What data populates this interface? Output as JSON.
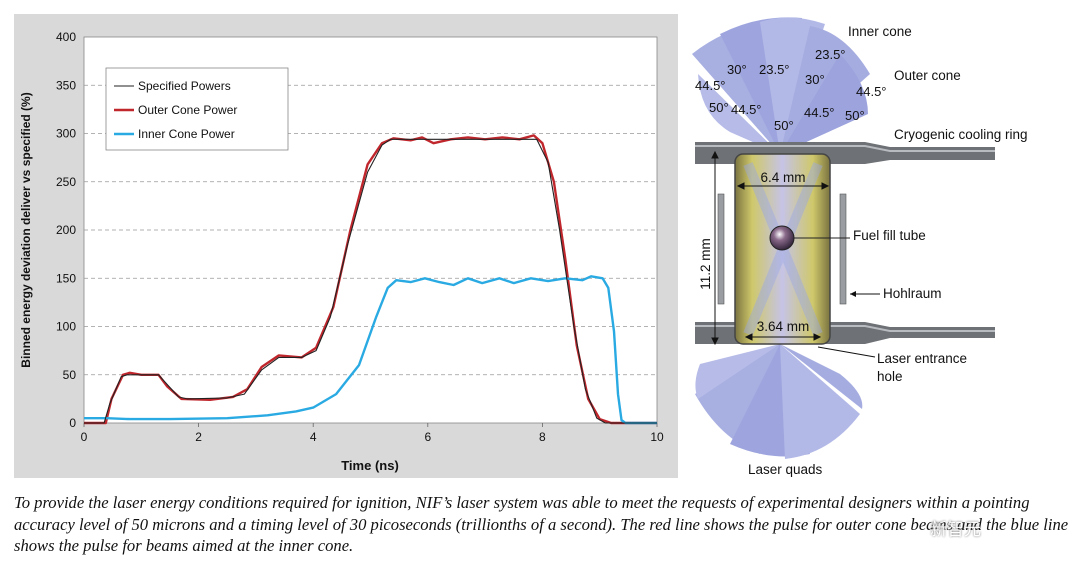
{
  "chart_data": {
    "type": "line",
    "xlabel": "Time (ns)",
    "ylabel": "Binned energy deviation deliver vs specified (%)",
    "xlim": [
      0,
      10
    ],
    "ylim": [
      0,
      400
    ],
    "x_ticks": [
      "0",
      "2",
      "4",
      "6",
      "8",
      "10"
    ],
    "y_ticks": [
      "0",
      "50",
      "100",
      "150",
      "200",
      "250",
      "300",
      "350",
      "400"
    ],
    "grid": "horizontal dashed",
    "legend": "top-left",
    "series": [
      {
        "name": "Specified Powers",
        "color": "#222222",
        "points": [
          [
            0,
            0
          ],
          [
            0.35,
            0
          ],
          [
            0.45,
            20
          ],
          [
            0.65,
            48
          ],
          [
            0.75,
            50
          ],
          [
            1.3,
            50
          ],
          [
            1.45,
            40
          ],
          [
            1.65,
            27
          ],
          [
            1.8,
            25
          ],
          [
            2.5,
            26
          ],
          [
            2.8,
            30
          ],
          [
            3.1,
            55
          ],
          [
            3.4,
            68
          ],
          [
            3.8,
            68
          ],
          [
            4.05,
            75
          ],
          [
            4.3,
            110
          ],
          [
            4.6,
            185
          ],
          [
            4.95,
            260
          ],
          [
            5.2,
            288
          ],
          [
            5.35,
            294
          ],
          [
            6.0,
            294
          ],
          [
            7.9,
            294
          ],
          [
            8.1,
            270
          ],
          [
            8.3,
            200
          ],
          [
            8.55,
            100
          ],
          [
            8.75,
            35
          ],
          [
            8.95,
            5
          ],
          [
            9.1,
            0
          ],
          [
            10,
            0
          ]
        ]
      },
      {
        "name": "Outer Cone Power",
        "color": "#c0272d",
        "points": [
          [
            0,
            0
          ],
          [
            0.38,
            0
          ],
          [
            0.48,
            25
          ],
          [
            0.68,
            50
          ],
          [
            0.8,
            52
          ],
          [
            1.0,
            50
          ],
          [
            1.3,
            50
          ],
          [
            1.45,
            38
          ],
          [
            1.7,
            25
          ],
          [
            2.2,
            24
          ],
          [
            2.6,
            27
          ],
          [
            2.85,
            35
          ],
          [
            3.1,
            58
          ],
          [
            3.4,
            70
          ],
          [
            3.8,
            68
          ],
          [
            4.05,
            78
          ],
          [
            4.35,
            120
          ],
          [
            4.65,
            200
          ],
          [
            4.95,
            268
          ],
          [
            5.2,
            290
          ],
          [
            5.4,
            295
          ],
          [
            5.7,
            293
          ],
          [
            5.9,
            296
          ],
          [
            6.1,
            290
          ],
          [
            6.4,
            294
          ],
          [
            6.7,
            296
          ],
          [
            7.0,
            294
          ],
          [
            7.3,
            296
          ],
          [
            7.6,
            294
          ],
          [
            7.85,
            298
          ],
          [
            8.0,
            290
          ],
          [
            8.2,
            250
          ],
          [
            8.4,
            170
          ],
          [
            8.6,
            80
          ],
          [
            8.8,
            25
          ],
          [
            9.0,
            4
          ],
          [
            9.2,
            0
          ],
          [
            10,
            0
          ]
        ]
      },
      {
        "name": "Inner Cone Power",
        "color": "#2aaae2",
        "points": [
          [
            0,
            5
          ],
          [
            0.4,
            5
          ],
          [
            0.8,
            4
          ],
          [
            1.5,
            4
          ],
          [
            2.5,
            5
          ],
          [
            3.2,
            8
          ],
          [
            3.7,
            12
          ],
          [
            4.0,
            16
          ],
          [
            4.4,
            30
          ],
          [
            4.8,
            60
          ],
          [
            5.1,
            110
          ],
          [
            5.3,
            140
          ],
          [
            5.45,
            148
          ],
          [
            5.7,
            146
          ],
          [
            5.95,
            150
          ],
          [
            6.2,
            146
          ],
          [
            6.45,
            143
          ],
          [
            6.7,
            150
          ],
          [
            6.95,
            145
          ],
          [
            7.25,
            150
          ],
          [
            7.5,
            145
          ],
          [
            7.8,
            150
          ],
          [
            8.1,
            147
          ],
          [
            8.4,
            150
          ],
          [
            8.7,
            148
          ],
          [
            8.85,
            152
          ],
          [
            9.05,
            150
          ],
          [
            9.15,
            140
          ],
          [
            9.25,
            95
          ],
          [
            9.32,
            30
          ],
          [
            9.38,
            3
          ],
          [
            9.45,
            0
          ],
          [
            10,
            0
          ]
        ]
      }
    ]
  },
  "diagram": {
    "labels": {
      "inner_cone": "Inner cone",
      "outer_cone": "Outer cone",
      "cooling_ring": "Cryogenic cooling ring",
      "fuel_fill_tube": "Fuel fill tube",
      "hohlraum": "Hohlraum",
      "laser_entrance_hole_1": "Laser entrance",
      "laser_entrance_hole_2": "hole",
      "laser_quads": "Laser quads",
      "width_top": "6.4 mm",
      "width_bottom": "3.64 mm",
      "height": "11.2 mm"
    },
    "angles": [
      "23.5°",
      "30°",
      "23.5°",
      "30°",
      "44.5°",
      "44.5°",
      "50°",
      "44.5°",
      "44.5°",
      "50°",
      "50°"
    ]
  },
  "caption": "To provide the laser energy conditions required for ignition, NIF’s laser system was able to meet the requests of experimental designers within a pointing accuracy level of 50 microns and a timing level of 30 picoseconds (trillionths of a second). The red line shows the pulse for outer cone beams and the blue line shows the pulse for beams aimed at the inner cone.",
  "watermark": "新智元",
  "colors": {
    "panel_bg": "#d9d9d9",
    "plot_bg": "#ffffff",
    "outer": "#c0272d",
    "inner": "#2aaae2",
    "spec": "#222222"
  }
}
